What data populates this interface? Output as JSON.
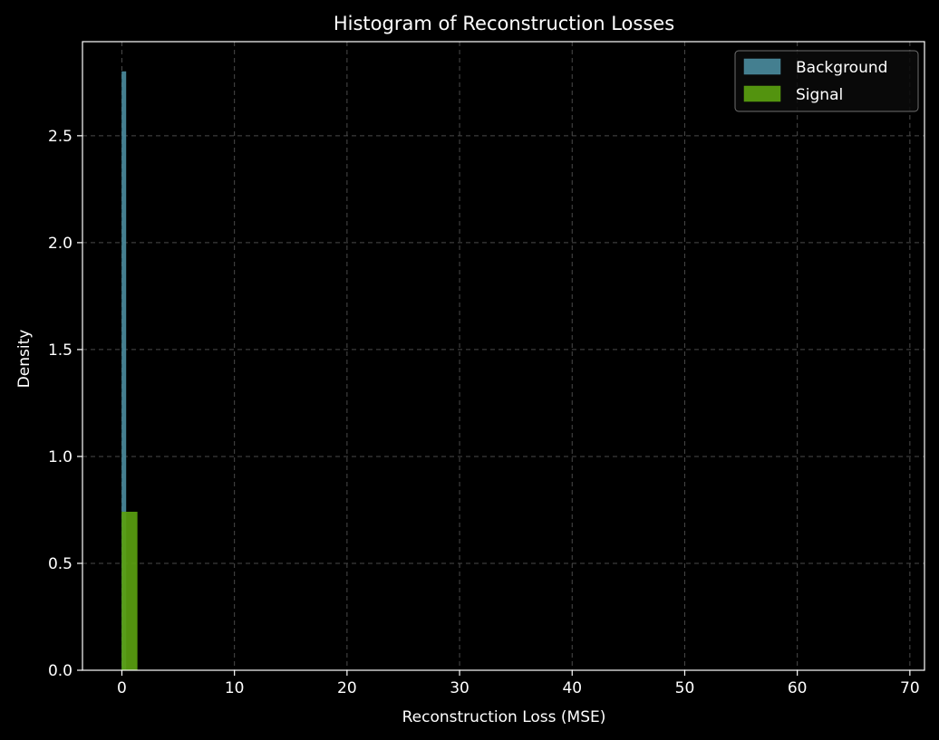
{
  "chart_data": {
    "type": "bar",
    "title": "Histogram of Reconstruction Losses",
    "xlabel": "Reconstruction Loss (MSE)",
    "ylabel": "Density",
    "xlim": [
      -3.5,
      71.3
    ],
    "ylim": [
      0,
      2.94
    ],
    "xticks": [
      0,
      10,
      20,
      30,
      40,
      50,
      60,
      70
    ],
    "yticks": [
      0.0,
      0.5,
      1.0,
      1.5,
      2.0,
      2.5
    ],
    "xtick_labels": [
      "0",
      "10",
      "20",
      "30",
      "40",
      "50",
      "60",
      "70"
    ],
    "ytick_labels": [
      "0.0",
      "0.5",
      "1.0",
      "1.5",
      "2.0",
      "2.5"
    ],
    "grid": true,
    "legend_position": "top-right",
    "series": [
      {
        "name": "Background",
        "color": "#4a8a9c",
        "bins": [
          {
            "x0": 0.0,
            "x1": 0.36,
            "value": 2.8
          }
        ]
      },
      {
        "name": "Signal",
        "color": "#5aa010",
        "bins": [
          {
            "x0": 0.0,
            "x1": 1.36,
            "value": 0.74
          }
        ]
      }
    ]
  }
}
